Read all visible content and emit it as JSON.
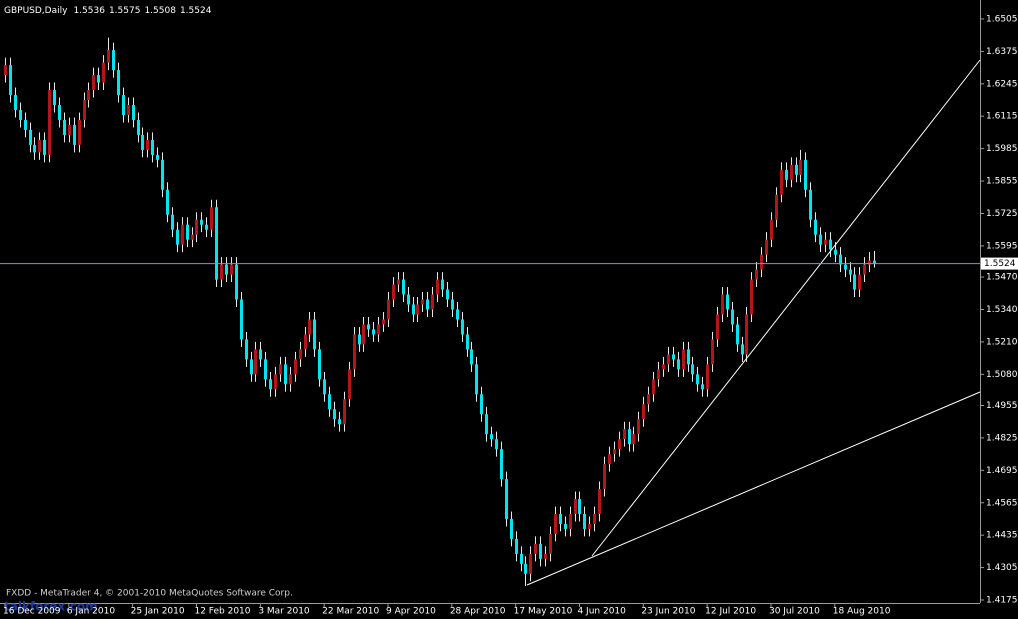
{
  "chart_data": {
    "type": "candlestick",
    "title": "GBPUSD,Daily",
    "header_ohlc": [
      1.5536,
      1.5575,
      1.5508,
      1.5524
    ],
    "current_price": 1.5524,
    "up_color": "#b3151b",
    "down_color": "#00e5ee",
    "wick_color": "#e8e8e8",
    "ylim": [
      1.4163,
      1.6569
    ],
    "yticks": [
      1.6505,
      1.6375,
      1.6245,
      1.6115,
      1.5985,
      1.5855,
      1.5725,
      1.5595,
      {
        "value": 1.547,
        "label": "1.5470"
      },
      {
        "value": 1.534,
        "label": "1.5340"
      },
      {
        "value": 1.521,
        "label": "1.5210"
      },
      {
        "value": 1.508,
        "label": "1.5080"
      },
      1.4955,
      1.4825,
      1.4695,
      1.4565,
      1.4435,
      1.4305,
      1.4175
    ],
    "categories": [
      "16 Dec 2009",
      null,
      null,
      null,
      null,
      null,
      null,
      null,
      null,
      null,
      null,
      null,
      null,
      "6 Jan 2010",
      null,
      null,
      null,
      null,
      null,
      null,
      null,
      null,
      null,
      null,
      null,
      null,
      "25 Jan 2010",
      null,
      null,
      null,
      null,
      null,
      null,
      null,
      null,
      null,
      null,
      null,
      null,
      "12 Feb 2010",
      null,
      null,
      null,
      null,
      null,
      null,
      null,
      null,
      null,
      null,
      null,
      null,
      "3 Mar 2010",
      null,
      null,
      null,
      null,
      null,
      null,
      null,
      null,
      null,
      null,
      null,
      null,
      "22 Mar 2010",
      null,
      null,
      null,
      null,
      null,
      null,
      null,
      null,
      null,
      null,
      null,
      null,
      "9 Apr 2010",
      null,
      null,
      null,
      null,
      null,
      null,
      null,
      null,
      null,
      null,
      null,
      null,
      "28 Apr 2010",
      null,
      null,
      null,
      null,
      null,
      null,
      null,
      null,
      null,
      null,
      null,
      null,
      "17 May 2010",
      null,
      null,
      null,
      null,
      null,
      null,
      null,
      null,
      null,
      null,
      null,
      null,
      "4 Jun 2010",
      null,
      null,
      null,
      null,
      null,
      null,
      null,
      null,
      null,
      null,
      null,
      null,
      "23 Jun 2010",
      null,
      null,
      null,
      null,
      null,
      null,
      null,
      null,
      null,
      null,
      null,
      null,
      "12 Jul 2010",
      null,
      null,
      null,
      null,
      null,
      null,
      null,
      null,
      null,
      null,
      null,
      null,
      "30 Jul 2010",
      null,
      null,
      null,
      null,
      null,
      null,
      null,
      null,
      null,
      null,
      null,
      null,
      "18 Aug 2010",
      null,
      null,
      null,
      null,
      null,
      null,
      null,
      null
    ],
    "open": [
      1.628,
      1.632,
      1.62,
      1.614,
      1.61,
      1.606,
      1.6,
      1.597,
      1.602,
      1.596,
      1.622,
      1.616,
      1.61,
      1.604,
      1.608,
      1.6,
      1.61,
      1.618,
      1.622,
      1.628,
      1.625,
      1.633,
      1.638,
      1.63,
      1.62,
      1.612,
      1.616,
      1.61,
      1.604,
      1.598,
      1.602,
      1.596,
      1.594,
      1.582,
      1.572,
      1.566,
      1.56,
      1.568,
      1.562,
      1.564,
      1.57,
      1.568,
      1.566,
      1.575,
      1.546,
      1.552,
      1.548,
      1.552,
      1.538,
      1.522,
      1.514,
      1.508,
      1.518,
      1.514,
      1.506,
      1.502,
      1.508,
      1.512,
      1.504,
      1.508,
      1.514,
      1.518,
      1.524,
      1.53,
      1.518,
      1.506,
      1.5,
      1.494,
      1.49,
      1.488,
      1.498,
      1.51,
      1.524,
      1.52,
      1.528,
      1.526,
      1.524,
      1.528,
      1.53,
      1.538,
      1.544,
      1.546,
      1.54,
      1.536,
      1.532,
      1.536,
      1.538,
      1.534,
      1.54,
      1.546,
      1.542,
      1.538,
      1.534,
      1.53,
      1.524,
      1.518,
      1.512,
      1.5,
      1.492,
      1.484,
      1.482,
      1.478,
      1.466,
      1.45,
      1.442,
      1.436,
      1.432,
      1.428,
      1.436,
      1.44,
      1.434,
      1.436,
      1.444,
      1.452,
      1.448,
      1.446,
      1.452,
      1.458,
      1.452,
      1.446,
      1.448,
      1.452,
      1.462,
      1.472,
      1.476,
      1.478,
      1.482,
      1.486,
      1.48,
      1.484,
      1.49,
      1.496,
      1.5,
      1.506,
      1.51,
      1.512,
      1.516,
      1.514,
      1.51,
      1.518,
      1.512,
      1.508,
      1.504,
      1.502,
      1.512,
      1.522,
      1.532,
      1.54,
      1.534,
      1.528,
      1.52,
      1.516,
      1.532,
      1.546,
      1.55,
      1.556,
      1.562,
      1.57,
      1.58,
      1.59,
      1.586,
      1.592,
      1.588,
      1.594,
      1.582,
      1.57,
      1.564,
      1.56,
      1.562,
      1.558,
      1.556,
      1.552,
      1.55,
      1.548,
      1.542,
      1.548,
      1.552,
      1.5536
    ],
    "high": [
      1.635,
      1.635,
      1.623,
      1.617,
      1.613,
      1.609,
      1.603,
      1.605,
      1.605,
      1.625,
      1.625,
      1.619,
      1.613,
      1.611,
      1.611,
      1.613,
      1.621,
      1.625,
      1.631,
      1.631,
      1.636,
      1.643,
      1.641,
      1.633,
      1.623,
      1.619,
      1.619,
      1.613,
      1.607,
      1.605,
      1.605,
      1.599,
      1.597,
      1.585,
      1.575,
      1.569,
      1.571,
      1.571,
      1.567,
      1.573,
      1.573,
      1.571,
      1.578,
      1.578,
      1.555,
      1.555,
      1.555,
      1.555,
      1.541,
      1.525,
      1.517,
      1.521,
      1.521,
      1.517,
      1.509,
      1.511,
      1.515,
      1.515,
      1.511,
      1.517,
      1.521,
      1.527,
      1.533,
      1.533,
      1.521,
      1.509,
      1.503,
      1.497,
      1.493,
      1.501,
      1.513,
      1.527,
      1.527,
      1.531,
      1.531,
      1.529,
      1.531,
      1.533,
      1.541,
      1.547,
      1.549,
      1.549,
      1.543,
      1.539,
      1.539,
      1.541,
      1.541,
      1.543,
      1.549,
      1.549,
      1.545,
      1.541,
      1.537,
      1.533,
      1.527,
      1.521,
      1.515,
      1.503,
      1.495,
      1.487,
      1.485,
      1.481,
      1.469,
      1.453,
      1.445,
      1.439,
      1.435,
      1.439,
      1.443,
      1.443,
      1.439,
      1.447,
      1.455,
      1.455,
      1.451,
      1.455,
      1.461,
      1.461,
      1.455,
      1.451,
      1.455,
      1.465,
      1.475,
      1.479,
      1.481,
      1.485,
      1.489,
      1.489,
      1.487,
      1.493,
      1.499,
      1.503,
      1.509,
      1.513,
      1.515,
      1.519,
      1.519,
      1.517,
      1.521,
      1.521,
      1.515,
      1.511,
      1.507,
      1.515,
      1.525,
      1.535,
      1.543,
      1.543,
      1.537,
      1.531,
      1.523,
      1.535,
      1.549,
      1.553,
      1.559,
      1.565,
      1.573,
      1.583,
      1.593,
      1.593,
      1.595,
      1.595,
      1.598,
      1.597,
      1.585,
      1.573,
      1.567,
      1.565,
      1.565,
      1.561,
      1.559,
      1.555,
      1.553,
      1.551,
      1.551,
      1.555,
      1.557,
      1.5575
    ],
    "low": [
      1.625,
      1.617,
      1.611,
      1.607,
      1.603,
      1.597,
      1.594,
      1.594,
      1.593,
      1.593,
      1.613,
      1.607,
      1.601,
      1.601,
      1.597,
      1.597,
      1.607,
      1.615,
      1.619,
      1.622,
      1.622,
      1.63,
      1.627,
      1.617,
      1.609,
      1.609,
      1.607,
      1.601,
      1.595,
      1.595,
      1.593,
      1.591,
      1.579,
      1.569,
      1.563,
      1.557,
      1.557,
      1.559,
      1.559,
      1.561,
      1.565,
      1.563,
      1.563,
      1.543,
      1.543,
      1.545,
      1.545,
      1.535,
      1.519,
      1.511,
      1.505,
      1.505,
      1.511,
      1.503,
      1.499,
      1.499,
      1.505,
      1.501,
      1.501,
      1.505,
      1.511,
      1.515,
      1.521,
      1.515,
      1.503,
      1.497,
      1.491,
      1.487,
      1.485,
      1.485,
      1.495,
      1.507,
      1.517,
      1.517,
      1.523,
      1.521,
      1.521,
      1.525,
      1.527,
      1.535,
      1.541,
      1.537,
      1.533,
      1.529,
      1.529,
      1.533,
      1.531,
      1.531,
      1.537,
      1.539,
      1.535,
      1.531,
      1.527,
      1.521,
      1.515,
      1.509,
      1.497,
      1.489,
      1.481,
      1.479,
      1.475,
      1.463,
      1.447,
      1.439,
      1.433,
      1.429,
      1.4231,
      1.425,
      1.433,
      1.431,
      1.431,
      1.433,
      1.441,
      1.445,
      1.443,
      1.443,
      1.449,
      1.449,
      1.443,
      1.443,
      1.445,
      1.449,
      1.459,
      1.469,
      1.473,
      1.475,
      1.479,
      1.477,
      1.477,
      1.481,
      1.487,
      1.493,
      1.497,
      1.503,
      1.507,
      1.509,
      1.511,
      1.507,
      1.507,
      1.509,
      1.505,
      1.501,
      1.499,
      1.499,
      1.509,
      1.519,
      1.529,
      1.531,
      1.525,
      1.517,
      1.513,
      1.513,
      1.529,
      1.543,
      1.547,
      1.553,
      1.559,
      1.567,
      1.577,
      1.583,
      1.583,
      1.585,
      1.585,
      1.579,
      1.567,
      1.561,
      1.557,
      1.557,
      1.555,
      1.553,
      1.549,
      1.547,
      1.545,
      1.539,
      1.539,
      1.545,
      1.549,
      1.5508
    ],
    "close": [
      1.632,
      1.62,
      1.614,
      1.61,
      1.606,
      1.6,
      1.597,
      1.602,
      1.596,
      1.622,
      1.616,
      1.61,
      1.604,
      1.608,
      1.6,
      1.61,
      1.618,
      1.622,
      1.628,
      1.625,
      1.633,
      1.638,
      1.63,
      1.62,
      1.612,
      1.616,
      1.61,
      1.604,
      1.598,
      1.602,
      1.596,
      1.594,
      1.582,
      1.572,
      1.566,
      1.56,
      1.568,
      1.562,
      1.564,
      1.57,
      1.568,
      1.566,
      1.575,
      1.546,
      1.552,
      1.548,
      1.552,
      1.538,
      1.522,
      1.514,
      1.508,
      1.518,
      1.514,
      1.506,
      1.502,
      1.508,
      1.512,
      1.504,
      1.508,
      1.514,
      1.518,
      1.524,
      1.53,
      1.518,
      1.506,
      1.5,
      1.494,
      1.49,
      1.488,
      1.498,
      1.51,
      1.524,
      1.52,
      1.528,
      1.526,
      1.524,
      1.528,
      1.53,
      1.538,
      1.544,
      1.546,
      1.54,
      1.536,
      1.532,
      1.536,
      1.538,
      1.534,
      1.54,
      1.546,
      1.542,
      1.538,
      1.534,
      1.53,
      1.524,
      1.518,
      1.512,
      1.5,
      1.492,
      1.484,
      1.482,
      1.478,
      1.466,
      1.45,
      1.442,
      1.436,
      1.432,
      1.428,
      1.436,
      1.44,
      1.434,
      1.436,
      1.444,
      1.452,
      1.448,
      1.446,
      1.452,
      1.458,
      1.452,
      1.446,
      1.448,
      1.452,
      1.462,
      1.472,
      1.476,
      1.478,
      1.482,
      1.486,
      1.48,
      1.484,
      1.49,
      1.496,
      1.5,
      1.506,
      1.51,
      1.512,
      1.516,
      1.514,
      1.51,
      1.518,
      1.512,
      1.508,
      1.504,
      1.502,
      1.512,
      1.522,
      1.532,
      1.54,
      1.534,
      1.528,
      1.52,
      1.516,
      1.532,
      1.546,
      1.55,
      1.556,
      1.562,
      1.57,
      1.58,
      1.59,
      1.586,
      1.592,
      1.588,
      1.594,
      1.582,
      1.57,
      1.564,
      1.56,
      1.562,
      1.558,
      1.556,
      1.552,
      1.55,
      1.548,
      1.542,
      1.548,
      1.552,
      1.5536,
      1.5524
    ]
  },
  "footer": "FXDD - MetaTrader 4, © 2001-2010 MetaQuotes Software Corp.",
  "watermark": "talkforex.com"
}
